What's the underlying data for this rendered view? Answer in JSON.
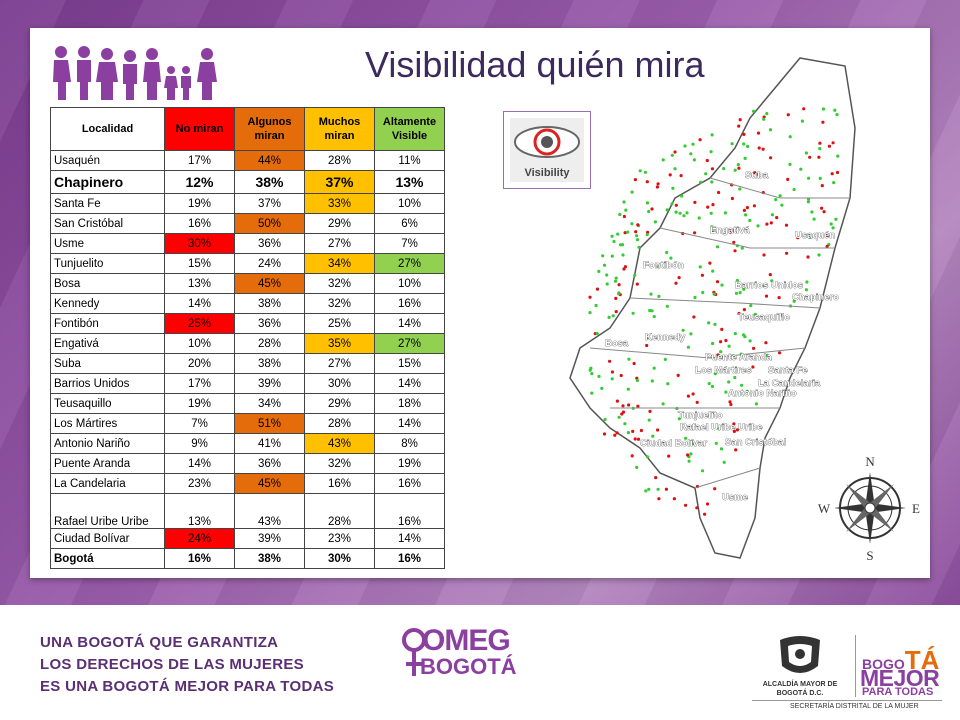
{
  "title": "Visibilidad quién mira",
  "table": {
    "headers": [
      "Localidad",
      "No miran",
      "Algunos miran",
      "Muchos miran",
      "Altamente Visible"
    ],
    "rows": [
      {
        "loc": "Usaquén",
        "v": [
          "17%",
          "44%",
          "28%",
          "11%"
        ],
        "hl": [
          "",
          "orange",
          "",
          ""
        ]
      },
      {
        "loc": "Chapinero",
        "v": [
          "12%",
          "38%",
          "37%",
          "13%"
        ],
        "hl": [
          "",
          "",
          "yellow",
          ""
        ],
        "style": "big"
      },
      {
        "loc": "Santa Fe",
        "v": [
          "19%",
          "37%",
          "33%",
          "10%"
        ],
        "hl": [
          "",
          "",
          "yellow",
          ""
        ]
      },
      {
        "loc": "San Cristóbal",
        "v": [
          "16%",
          "50%",
          "29%",
          "6%"
        ],
        "hl": [
          "",
          "orange",
          "",
          ""
        ]
      },
      {
        "loc": "Usme",
        "v": [
          "30%",
          "36%",
          "27%",
          "7%"
        ],
        "hl": [
          "red",
          "",
          "",
          ""
        ]
      },
      {
        "loc": "Tunjuelito",
        "v": [
          "15%",
          "24%",
          "34%",
          "27%"
        ],
        "hl": [
          "",
          "",
          "yellow",
          "green"
        ]
      },
      {
        "loc": "Bosa",
        "v": [
          "13%",
          "45%",
          "32%",
          "10%"
        ],
        "hl": [
          "",
          "orange",
          "",
          ""
        ]
      },
      {
        "loc": "Kennedy",
        "v": [
          "14%",
          "38%",
          "32%",
          "16%"
        ],
        "hl": [
          "",
          "",
          "",
          ""
        ]
      },
      {
        "loc": "Fontibón",
        "v": [
          "25%",
          "36%",
          "25%",
          "14%"
        ],
        "hl": [
          "red",
          "",
          "",
          ""
        ]
      },
      {
        "loc": "Engativá",
        "v": [
          "10%",
          "28%",
          "35%",
          "27%"
        ],
        "hl": [
          "",
          "",
          "yellow",
          "green"
        ]
      },
      {
        "loc": "Suba",
        "v": [
          "20%",
          "38%",
          "27%",
          "15%"
        ],
        "hl": [
          "",
          "",
          "",
          ""
        ]
      },
      {
        "loc": "Barrios Unidos",
        "v": [
          "17%",
          "39%",
          "30%",
          "14%"
        ],
        "hl": [
          "",
          "",
          "",
          ""
        ]
      },
      {
        "loc": "Teusaquillo",
        "v": [
          "19%",
          "34%",
          "29%",
          "18%"
        ],
        "hl": [
          "",
          "",
          "",
          ""
        ]
      },
      {
        "loc": "Los Mártires",
        "v": [
          "7%",
          "51%",
          "28%",
          "14%"
        ],
        "hl": [
          "",
          "orange",
          "",
          ""
        ]
      },
      {
        "loc": "Antonio Nariño",
        "v": [
          "9%",
          "41%",
          "43%",
          "8%"
        ],
        "hl": [
          "",
          "",
          "yellow",
          ""
        ]
      },
      {
        "loc": "Puente Aranda",
        "v": [
          "14%",
          "36%",
          "32%",
          "19%"
        ],
        "hl": [
          "",
          "",
          "",
          ""
        ]
      },
      {
        "loc": "La Candelaria",
        "v": [
          "23%",
          "45%",
          "16%",
          "16%"
        ],
        "hl": [
          "",
          "orange",
          "",
          ""
        ]
      },
      {
        "loc": "Rafael Uribe Uribe",
        "v": [
          "13%",
          "43%",
          "28%",
          "16%"
        ],
        "hl": [
          "",
          "",
          "",
          ""
        ],
        "style": "tall"
      },
      {
        "loc": "Ciudad Bolívar",
        "v": [
          "24%",
          "39%",
          "23%",
          "14%"
        ],
        "hl": [
          "red",
          "",
          "",
          ""
        ]
      },
      {
        "loc": "Bogotá",
        "v": [
          "16%",
          "38%",
          "30%",
          "16%"
        ],
        "hl": [
          "",
          "",
          "",
          ""
        ],
        "style": "total"
      }
    ]
  },
  "visibility_label": "Visibility",
  "map": {
    "labels": [
      "Suba",
      "Engativá",
      "Usaquén",
      "Fontibón",
      "Barrios Unidos",
      "Chapinero",
      "Teusaquillo",
      "Bosa",
      "Kennedy",
      "Puente Aranda",
      "Los Mártires",
      "Santa Fe",
      "La Candelaria",
      "Antonio Nariño",
      "Tunjuelito",
      "Rafael Uribe Uribe",
      "Ciudad Bolívar",
      "San Cristóbal",
      "Usme"
    ],
    "compass": {
      "n": "N",
      "s": "S",
      "e": "E",
      "w": "W"
    }
  },
  "footer": {
    "line1": "UNA BOGOTÁ QUE GARANTIZA",
    "line2": "LOS DERECHOS DE LAS MUJERES",
    "line3": "ES UNA BOGOTÁ MEJOR PARA TODAS",
    "omeg1": "OMEG",
    "omeg2": "BOGOTÁ",
    "alcaldia": "ALCALDÍA MAYOR DE BOGOTÁ D.C.",
    "bogota_small": "BOGO",
    "bogota_big": "TÁ",
    "mejor": "MEJOR",
    "para_todas": "PARA TODAS",
    "secretaria": "SECRETARÍA DISTRITAL DE LA MUJER"
  }
}
